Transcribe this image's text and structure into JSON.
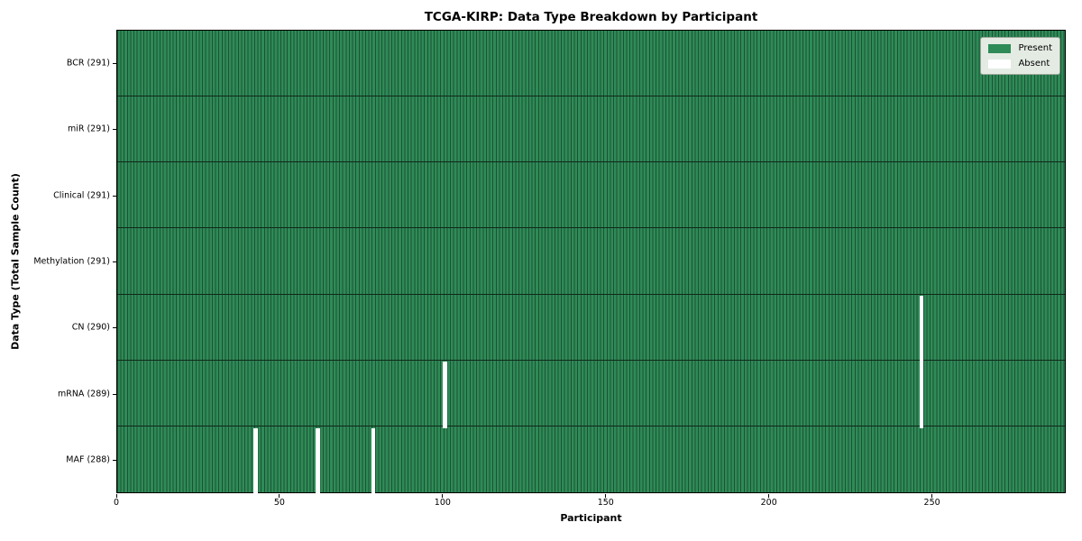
{
  "chart_data": {
    "type": "heatmap",
    "title": "TCGA-KIRP: Data Type Breakdown by Participant",
    "xlabel": "Participant",
    "ylabel": "Data Type (Total Sample Count)",
    "x_ticks": [
      0,
      50,
      100,
      150,
      200,
      250
    ],
    "xlim": [
      0,
      291
    ],
    "n_participants": 291,
    "grid": "per-participant-cell-edges",
    "legend_position": "upper-right",
    "legend": [
      {
        "label": "Present",
        "color": "#2e8b57"
      },
      {
        "label": "Absent",
        "color": "#ffffff"
      }
    ],
    "rows": [
      {
        "label": "BCR (291)",
        "data_type": "BCR",
        "present_count": 291,
        "absent_participants": []
      },
      {
        "label": "miR (291)",
        "data_type": "miR",
        "present_count": 291,
        "absent_participants": []
      },
      {
        "label": "Clinical (291)",
        "data_type": "Clinical",
        "present_count": 291,
        "absent_participants": []
      },
      {
        "label": "Methylation (291)",
        "data_type": "Methylation",
        "present_count": 291,
        "absent_participants": []
      },
      {
        "label": "CN (290)",
        "data_type": "CN",
        "present_count": 290,
        "absent_participants": [
          246
        ]
      },
      {
        "label": "mRNA (289)",
        "data_type": "mRNA",
        "present_count": 289,
        "absent_participants": [
          100,
          246
        ]
      },
      {
        "label": "MAF (288)",
        "data_type": "MAF",
        "present_count": 288,
        "absent_participants": [
          42,
          61,
          78
        ]
      }
    ],
    "colors": {
      "present": "#2e8b57",
      "absent": "#ffffff",
      "cell_edge": "#1d5134",
      "row_separator": "#10281a",
      "plot_border": "#000000",
      "legend_bg": "#e4ebe3",
      "legend_border": "#9aa79a",
      "text": "#000000"
    }
  }
}
